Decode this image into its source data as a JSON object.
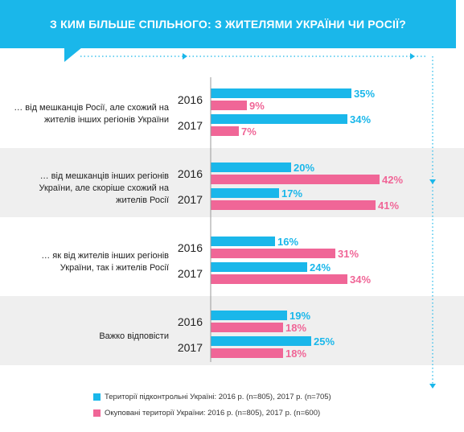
{
  "header": {
    "title": "З КИМ БІЛЬШЕ СПІЛЬНОГО: З ЖИТЕЛЯМИ УКРАЇНИ ЧИ РОСІЇ?"
  },
  "colors": {
    "accent": "#1ab7ea",
    "series_1": "#1ab7ea",
    "series_2": "#f06697"
  },
  "chart_data": {
    "type": "bar",
    "orientation": "horizontal",
    "title": "З КИМ БІЛЬШЕ СПІЛЬНОГО: З ЖИТЕЛЯМИ УКРАЇНИ ЧИ РОСІЇ?",
    "value_suffix": "%",
    "xlim": [
      0,
      50
    ],
    "groups": [
      {
        "label": "… від мешканців Росії, але схожий на жителів інших регіонів України",
        "label_lines": [
          "… від мешканців Росії, але схожий на",
          "жителів інших регіонів України"
        ],
        "banded": false,
        "years": [
          {
            "year": "2016",
            "values": [
              35,
              9
            ]
          },
          {
            "year": "2017",
            "values": [
              34,
              7
            ]
          }
        ]
      },
      {
        "label": "… від мешканців інших регіонів України, але скоріше схожий на жителів Росії",
        "label_lines": [
          "… від мешканців інших регіонів",
          "України, але скоріше схожий на",
          "жителів Росії"
        ],
        "banded": true,
        "years": [
          {
            "year": "2016",
            "values": [
              20,
              42
            ]
          },
          {
            "year": "2017",
            "values": [
              17,
              41
            ]
          }
        ]
      },
      {
        "label": "… як від жителів інших регіонів України, так і жителів Росії",
        "label_lines": [
          "… як від жителів інших регіонів",
          "України, так і жителів Росії"
        ],
        "banded": false,
        "years": [
          {
            "year": "2016",
            "values": [
              16,
              31
            ]
          },
          {
            "year": "2017",
            "values": [
              24,
              34
            ]
          }
        ]
      },
      {
        "label": "Важко відповісти",
        "label_lines": [
          "Важко відповісти"
        ],
        "banded": true,
        "years": [
          {
            "year": "2016",
            "values": [
              19,
              18
            ]
          },
          {
            "year": "2017",
            "values": [
              25,
              18
            ]
          }
        ]
      }
    ],
    "series": [
      {
        "name": "Території підконтрольні Україні:  2016 р. (n=805), 2017 р. (n=705)",
        "color": "#1ab7ea"
      },
      {
        "name": "Окуповані території України: 2016 р. (n=805), 2017 р. (n=600)",
        "color": "#f06697"
      }
    ],
    "legend_position": "bottom"
  }
}
